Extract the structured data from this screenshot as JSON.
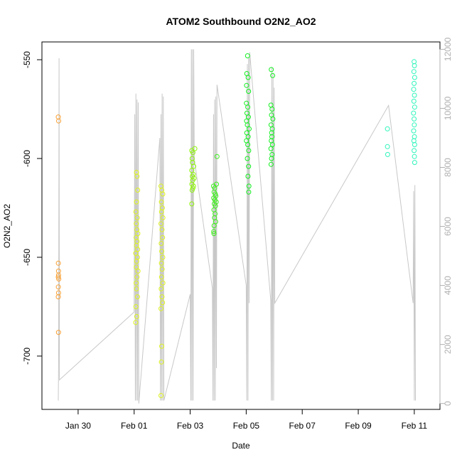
{
  "chart_data": {
    "type": "scatter",
    "title": "ATOM2 Southbound O2N2_AO2",
    "xlabel": "Date",
    "ylabel": "O2N2_AO2",
    "xlim": [
      "2025-01-28T17:00",
      "2025-02-11T22:00"
    ],
    "ylim": [
      -727,
      -541
    ],
    "y2lim": [
      -200,
      12250
    ],
    "x_ticks": [
      {
        "date": "2025-01-30",
        "label": "Jan 30"
      },
      {
        "date": "2025-02-01",
        "label": "Feb 01"
      },
      {
        "date": "2025-02-03",
        "label": "Feb 03"
      },
      {
        "date": "2025-02-05",
        "label": "Feb 05"
      },
      {
        "date": "2025-02-07",
        "label": "Feb 07"
      },
      {
        "date": "2025-02-09",
        "label": "Feb 09"
      },
      {
        "date": "2025-02-11",
        "label": "Feb 11"
      }
    ],
    "y_ticks": [
      -700,
      -650,
      -600,
      -550
    ],
    "y2_ticks": [
      0,
      2000,
      4000,
      6000,
      8000,
      10000,
      12000
    ],
    "grid": false,
    "legend": "none",
    "series": [
      {
        "color": "#f7a035",
        "points": [
          [
            "2025-01-29T07:00",
            -579
          ],
          [
            "2025-01-29T07:20",
            -581
          ],
          [
            "2025-01-29T07:05",
            -653
          ],
          [
            "2025-01-29T07:10",
            -657
          ],
          [
            "2025-01-29T07:15",
            -659
          ],
          [
            "2025-01-29T07:00",
            -660
          ],
          [
            "2025-01-29T07:25",
            -661
          ],
          [
            "2025-01-29T07:05",
            -665
          ],
          [
            "2025-01-29T07:15",
            -668
          ],
          [
            "2025-01-29T07:00",
            -670
          ],
          [
            "2025-01-29T07:10",
            -688
          ]
        ]
      },
      {
        "color": "#dff51a",
        "points": [
          [
            "2025-02-01T02:00",
            -607
          ],
          [
            "2025-02-01T02:30",
            -609
          ],
          [
            "2025-02-01T03:00",
            -616
          ],
          [
            "2025-02-01T02:00",
            -622
          ],
          [
            "2025-02-01T01:30",
            -627
          ],
          [
            "2025-02-01T02:40",
            -630
          ],
          [
            "2025-02-01T01:50",
            -633
          ],
          [
            "2025-02-01T02:20",
            -636
          ],
          [
            "2025-02-01T03:10",
            -638
          ],
          [
            "2025-02-01T01:40",
            -640
          ],
          [
            "2025-02-01T02:30",
            -642
          ],
          [
            "2025-02-01T02:00",
            -644
          ],
          [
            "2025-02-01T03:00",
            -646
          ],
          [
            "2025-02-01T01:20",
            -648
          ],
          [
            "2025-02-01T02:50",
            -650
          ],
          [
            "2025-02-01T02:10",
            -652
          ],
          [
            "2025-02-01T01:50",
            -655
          ],
          [
            "2025-02-01T03:20",
            -657
          ],
          [
            "2025-02-01T02:30",
            -660
          ],
          [
            "2025-02-01T01:40",
            -663
          ],
          [
            "2025-02-01T02:00",
            -666
          ],
          [
            "2025-02-01T02:50",
            -670
          ],
          [
            "2025-02-01T01:30",
            -675
          ],
          [
            "2025-02-01T02:10",
            -680
          ],
          [
            "2025-02-01T01:20",
            -683
          ],
          [
            "2025-02-01T23:00",
            -614
          ],
          [
            "2025-02-01T23:40",
            -616
          ],
          [
            "2025-02-02T00:30",
            -618
          ],
          [
            "2025-02-01T23:20",
            -622
          ],
          [
            "2025-02-02T00:10",
            -625
          ],
          [
            "2025-02-01T23:30",
            -627
          ],
          [
            "2025-02-02T00:40",
            -630
          ],
          [
            "2025-02-01T23:00",
            -633
          ],
          [
            "2025-02-01T23:50",
            -636
          ],
          [
            "2025-02-02T00:20",
            -640
          ],
          [
            "2025-02-01T23:10",
            -643
          ],
          [
            "2025-02-01T23:40",
            -647
          ],
          [
            "2025-02-02T00:30",
            -650
          ],
          [
            "2025-02-01T23:20",
            -653
          ],
          [
            "2025-02-02T00:00",
            -656
          ],
          [
            "2025-02-01T23:30",
            -660
          ],
          [
            "2025-02-02T00:40",
            -663
          ],
          [
            "2025-02-01T23:10",
            -666
          ],
          [
            "2025-02-01T23:50",
            -670
          ],
          [
            "2025-02-02T00:20",
            -673
          ],
          [
            "2025-02-01T23:00",
            -676
          ],
          [
            "2025-02-01T23:40",
            -695
          ],
          [
            "2025-02-01T23:20",
            -703
          ],
          [
            "2025-02-01T23:00",
            -720
          ]
        ]
      },
      {
        "color": "#8ef50a",
        "points": [
          [
            "2025-02-03T01:20",
            -596
          ],
          [
            "2025-02-03T02:20",
            -597
          ],
          [
            "2025-02-03T04:00",
            -595
          ],
          [
            "2025-02-03T01:40",
            -600
          ],
          [
            "2025-02-03T02:00",
            -602
          ],
          [
            "2025-02-03T03:00",
            -604
          ],
          [
            "2025-02-03T01:20",
            -606
          ],
          [
            "2025-02-03T02:40",
            -608
          ],
          [
            "2025-02-03T01:50",
            -609
          ],
          [
            "2025-02-03T03:20",
            -610
          ],
          [
            "2025-02-03T02:10",
            -611
          ],
          [
            "2025-02-03T01:30",
            -613
          ],
          [
            "2025-02-03T02:50",
            -614
          ],
          [
            "2025-02-03T01:40",
            -616
          ],
          [
            "2025-02-03T02:20",
            -615
          ],
          [
            "2025-02-03T01:20",
            -623
          ]
        ]
      },
      {
        "color": "#3cf01a",
        "points": [
          [
            "2025-02-03T20:00",
            -614
          ],
          [
            "2025-02-03T21:00",
            -615
          ],
          [
            "2025-02-03T22:30",
            -613
          ],
          [
            "2025-02-03T20:30",
            -617
          ],
          [
            "2025-02-03T21:30",
            -618
          ],
          [
            "2025-02-03T22:00",
            -619
          ],
          [
            "2025-02-03T20:10",
            -620
          ],
          [
            "2025-02-03T21:10",
            -621
          ],
          [
            "2025-02-03T22:20",
            -622
          ],
          [
            "2025-02-03T20:40",
            -623
          ],
          [
            "2025-02-03T21:40",
            -624
          ],
          [
            "2025-02-03T20:20",
            -626
          ],
          [
            "2025-02-03T21:20",
            -628
          ],
          [
            "2025-02-03T20:50",
            -630
          ],
          [
            "2025-02-03T21:50",
            -632
          ],
          [
            "2025-02-03T20:30",
            -634
          ],
          [
            "2025-02-03T20:10",
            -637
          ],
          [
            "2025-02-03T20:20",
            -638
          ],
          [
            "2025-02-03T23:00",
            -599
          ]
        ]
      },
      {
        "color": "#11f01e",
        "points": [
          [
            "2025-02-05T01:10",
            -548
          ],
          [
            "2025-02-05T00:30",
            -557
          ],
          [
            "2025-02-05T01:40",
            -559
          ],
          [
            "2025-02-05T00:20",
            -563
          ],
          [
            "2025-02-05T02:00",
            -566
          ],
          [
            "2025-02-05T00:10",
            -572
          ],
          [
            "2025-02-05T01:20",
            -574
          ],
          [
            "2025-02-05T00:40",
            -577
          ],
          [
            "2025-02-05T01:50",
            -579
          ],
          [
            "2025-02-05T00:20",
            -581
          ],
          [
            "2025-02-05T01:00",
            -583
          ],
          [
            "2025-02-05T02:30",
            -585
          ],
          [
            "2025-02-05T00:30",
            -587
          ],
          [
            "2025-02-05T01:40",
            -589
          ],
          [
            "2025-02-05T00:10",
            -591
          ],
          [
            "2025-02-05T01:20",
            -593
          ],
          [
            "2025-02-05T02:10",
            -596
          ],
          [
            "2025-02-05T01:00",
            -600
          ],
          [
            "2025-02-05T02:00",
            -604
          ],
          [
            "2025-02-05T01:30",
            -609
          ],
          [
            "2025-02-05T02:20",
            -614
          ],
          [
            "2025-02-05T02:10",
            -617
          ],
          [
            "2025-02-05T21:30",
            -555
          ],
          [
            "2025-02-05T22:40",
            -558
          ],
          [
            "2025-02-05T21:10",
            -573
          ],
          [
            "2025-02-05T22:10",
            -575
          ],
          [
            "2025-02-05T21:40",
            -578
          ],
          [
            "2025-02-05T22:50",
            -580
          ],
          [
            "2025-02-05T21:20",
            -583
          ],
          [
            "2025-02-05T22:20",
            -585
          ],
          [
            "2025-02-05T21:50",
            -587
          ],
          [
            "2025-02-05T22:00",
            -589
          ],
          [
            "2025-02-05T21:30",
            -591
          ],
          [
            "2025-02-05T22:30",
            -593
          ],
          [
            "2025-02-05T21:10",
            -595
          ],
          [
            "2025-02-05T22:10",
            -598
          ],
          [
            "2025-02-05T21:40",
            -600
          ],
          [
            "2025-02-05T21:20",
            -603
          ]
        ]
      },
      {
        "color": "#2ef5bb",
        "points": [
          [
            "2025-02-10T01:00",
            -585
          ],
          [
            "2025-02-10T01:00",
            -594
          ],
          [
            "2025-02-10T01:10",
            -598
          ],
          [
            "2025-02-10T23:50",
            -551
          ],
          [
            "2025-02-11T00:10",
            -553
          ],
          [
            "2025-02-10T23:40",
            -556
          ],
          [
            "2025-02-11T00:20",
            -559
          ],
          [
            "2025-02-10T23:50",
            -562
          ],
          [
            "2025-02-10T23:30",
            -565
          ],
          [
            "2025-02-11T00:10",
            -568
          ],
          [
            "2025-02-10T23:40",
            -571
          ],
          [
            "2025-02-11T00:20",
            -574
          ],
          [
            "2025-02-10T23:20",
            -577
          ],
          [
            "2025-02-10T23:50",
            -580
          ],
          [
            "2025-02-11T00:00",
            -583
          ],
          [
            "2025-02-10T23:30",
            -586
          ],
          [
            "2025-02-11T00:10",
            -589
          ],
          [
            "2025-02-10T23:40",
            -591
          ],
          [
            "2025-02-11T00:20",
            -593
          ],
          [
            "2025-02-10T23:50",
            -596
          ],
          [
            "2025-02-11T00:10",
            -599
          ],
          [
            "2025-02-11T00:20",
            -602
          ]
        ]
      }
    ],
    "secondary_series": {
      "color": "#c8c8c8",
      "points": [
        [
          "2025-01-29T07:00",
          100
        ],
        [
          "2025-01-29T07:20",
          1500
        ],
        [
          "2025-01-29T07:40",
          11700
        ],
        [
          "2025-01-29T08:00",
          800
        ],
        [
          "2025-02-01T00:00",
          3100
        ],
        [
          "2025-02-01T00:30",
          9800
        ],
        [
          "2025-02-01T01:00",
          100
        ],
        [
          "2025-02-01T01:30",
          10500
        ],
        [
          "2025-02-01T02:00",
          100
        ],
        [
          "2025-02-01T02:30",
          10300
        ],
        [
          "2025-02-01T03:00",
          100
        ],
        [
          "2025-02-01T03:30",
          10200
        ],
        [
          "2025-02-01T04:00",
          0
        ],
        [
          "2025-02-01T22:00",
          9000
        ],
        [
          "2025-02-01T22:30",
          100
        ],
        [
          "2025-02-01T23:00",
          9800
        ],
        [
          "2025-02-01T23:30",
          100
        ],
        [
          "2025-02-02T00:00",
          10500
        ],
        [
          "2025-02-02T00:30",
          100
        ],
        [
          "2025-02-02T01:00",
          10400
        ],
        [
          "2025-02-02T01:30",
          100
        ],
        [
          "2025-02-03T00:00",
          3700
        ],
        [
          "2025-02-03T00:30",
          100
        ],
        [
          "2025-02-03T01:00",
          12000
        ],
        [
          "2025-02-03T01:30",
          100
        ],
        [
          "2025-02-03T02:00",
          12000
        ],
        [
          "2025-02-03T02:30",
          100
        ],
        [
          "2025-02-03T03:00",
          12000
        ],
        [
          "2025-02-03T03:30",
          8300
        ],
        [
          "2025-02-03T19:00",
          3900
        ],
        [
          "2025-02-03T19:30",
          100
        ],
        [
          "2025-02-03T20:00",
          9800
        ],
        [
          "2025-02-03T20:30",
          100
        ],
        [
          "2025-02-03T21:00",
          10300
        ],
        [
          "2025-02-03T21:30",
          100
        ],
        [
          "2025-02-03T22:00",
          10400
        ],
        [
          "2025-02-03T22:30",
          1200
        ],
        [
          "2025-02-03T23:00",
          10800
        ],
        [
          "2025-02-05T00:00",
          4000
        ],
        [
          "2025-02-05T00:30",
          100
        ],
        [
          "2025-02-05T01:00",
          11500
        ],
        [
          "2025-02-05T01:30",
          100
        ],
        [
          "2025-02-05T02:00",
          11700
        ],
        [
          "2025-02-05T02:30",
          3400
        ],
        [
          "2025-02-05T03:00",
          11900
        ],
        [
          "2025-02-05T21:00",
          3500
        ],
        [
          "2025-02-05T21:30",
          100
        ],
        [
          "2025-02-05T22:00",
          11400
        ],
        [
          "2025-02-05T22:30",
          100
        ],
        [
          "2025-02-05T23:00",
          11200
        ],
        [
          "2025-02-05T23:30",
          100
        ],
        [
          "2025-02-06T00:00",
          10700
        ],
        [
          "2025-02-06T00:30",
          3400
        ],
        [
          "2025-02-10T02:00",
          10100
        ],
        [
          "2025-02-10T23:00",
          3400
        ],
        [
          "2025-02-10T23:30",
          7200
        ],
        [
          "2025-02-11T00:00",
          100
        ],
        [
          "2025-02-11T00:30",
          7400
        ],
        [
          "2025-02-11T01:00",
          100
        ]
      ]
    }
  }
}
